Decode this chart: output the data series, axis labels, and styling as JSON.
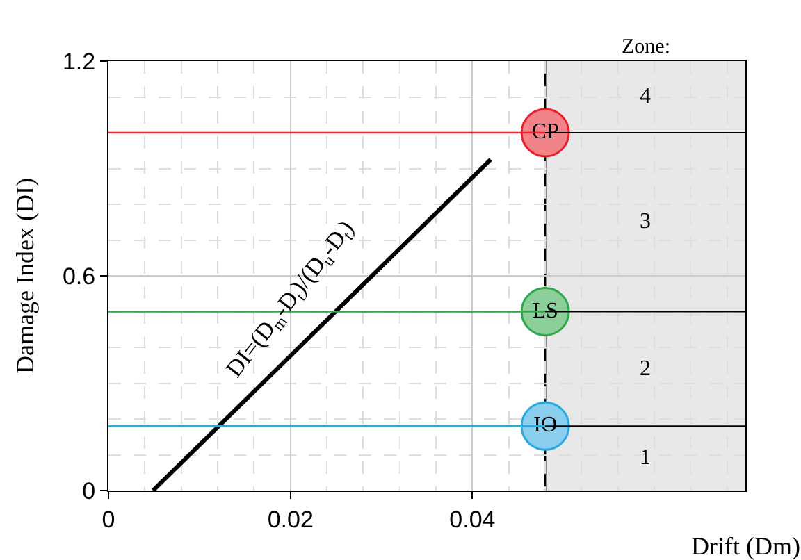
{
  "chart_data": {
    "type": "line",
    "xlabel": "Drift (Dm)",
    "ylabel": "Damage Index (DI)",
    "x": [
      0.0049,
      0.042
    ],
    "series": [
      {
        "color": "#000000",
        "values": [
          0,
          0.925
        ]
      }
    ],
    "xlim": [
      0,
      0.07
    ],
    "ylim": [
      0,
      1.2
    ],
    "xticks": [
      0,
      0.02,
      0.04
    ],
    "yticks": [
      0,
      0.6,
      1.2
    ],
    "grid": true,
    "marker": "none",
    "line_style": "solid",
    "ref_lines": [
      {
        "axis": "y",
        "value": 1.0,
        "label": "CP",
        "color": "#e8202a"
      },
      {
        "axis": "y",
        "value": 0.5,
        "label": "LS",
        "color": "#2ea84a"
      },
      {
        "axis": "y",
        "value": 0.18,
        "label": "IO",
        "color": "#29a9e0"
      },
      {
        "axis": "x",
        "value": 0.048,
        "color": "#000000"
      }
    ],
    "bands": [
      {
        "axis": "x",
        "from": 0.048,
        "to": 0.07,
        "label": "Zone:",
        "color": "#e8e8e8"
      }
    ],
    "annotations": [
      "DI=(D$_{m}$-D$_{t}$)/(D$_{u}$-D$_{t}$)",
      "4",
      "3",
      "2",
      "1"
    ]
  }
}
